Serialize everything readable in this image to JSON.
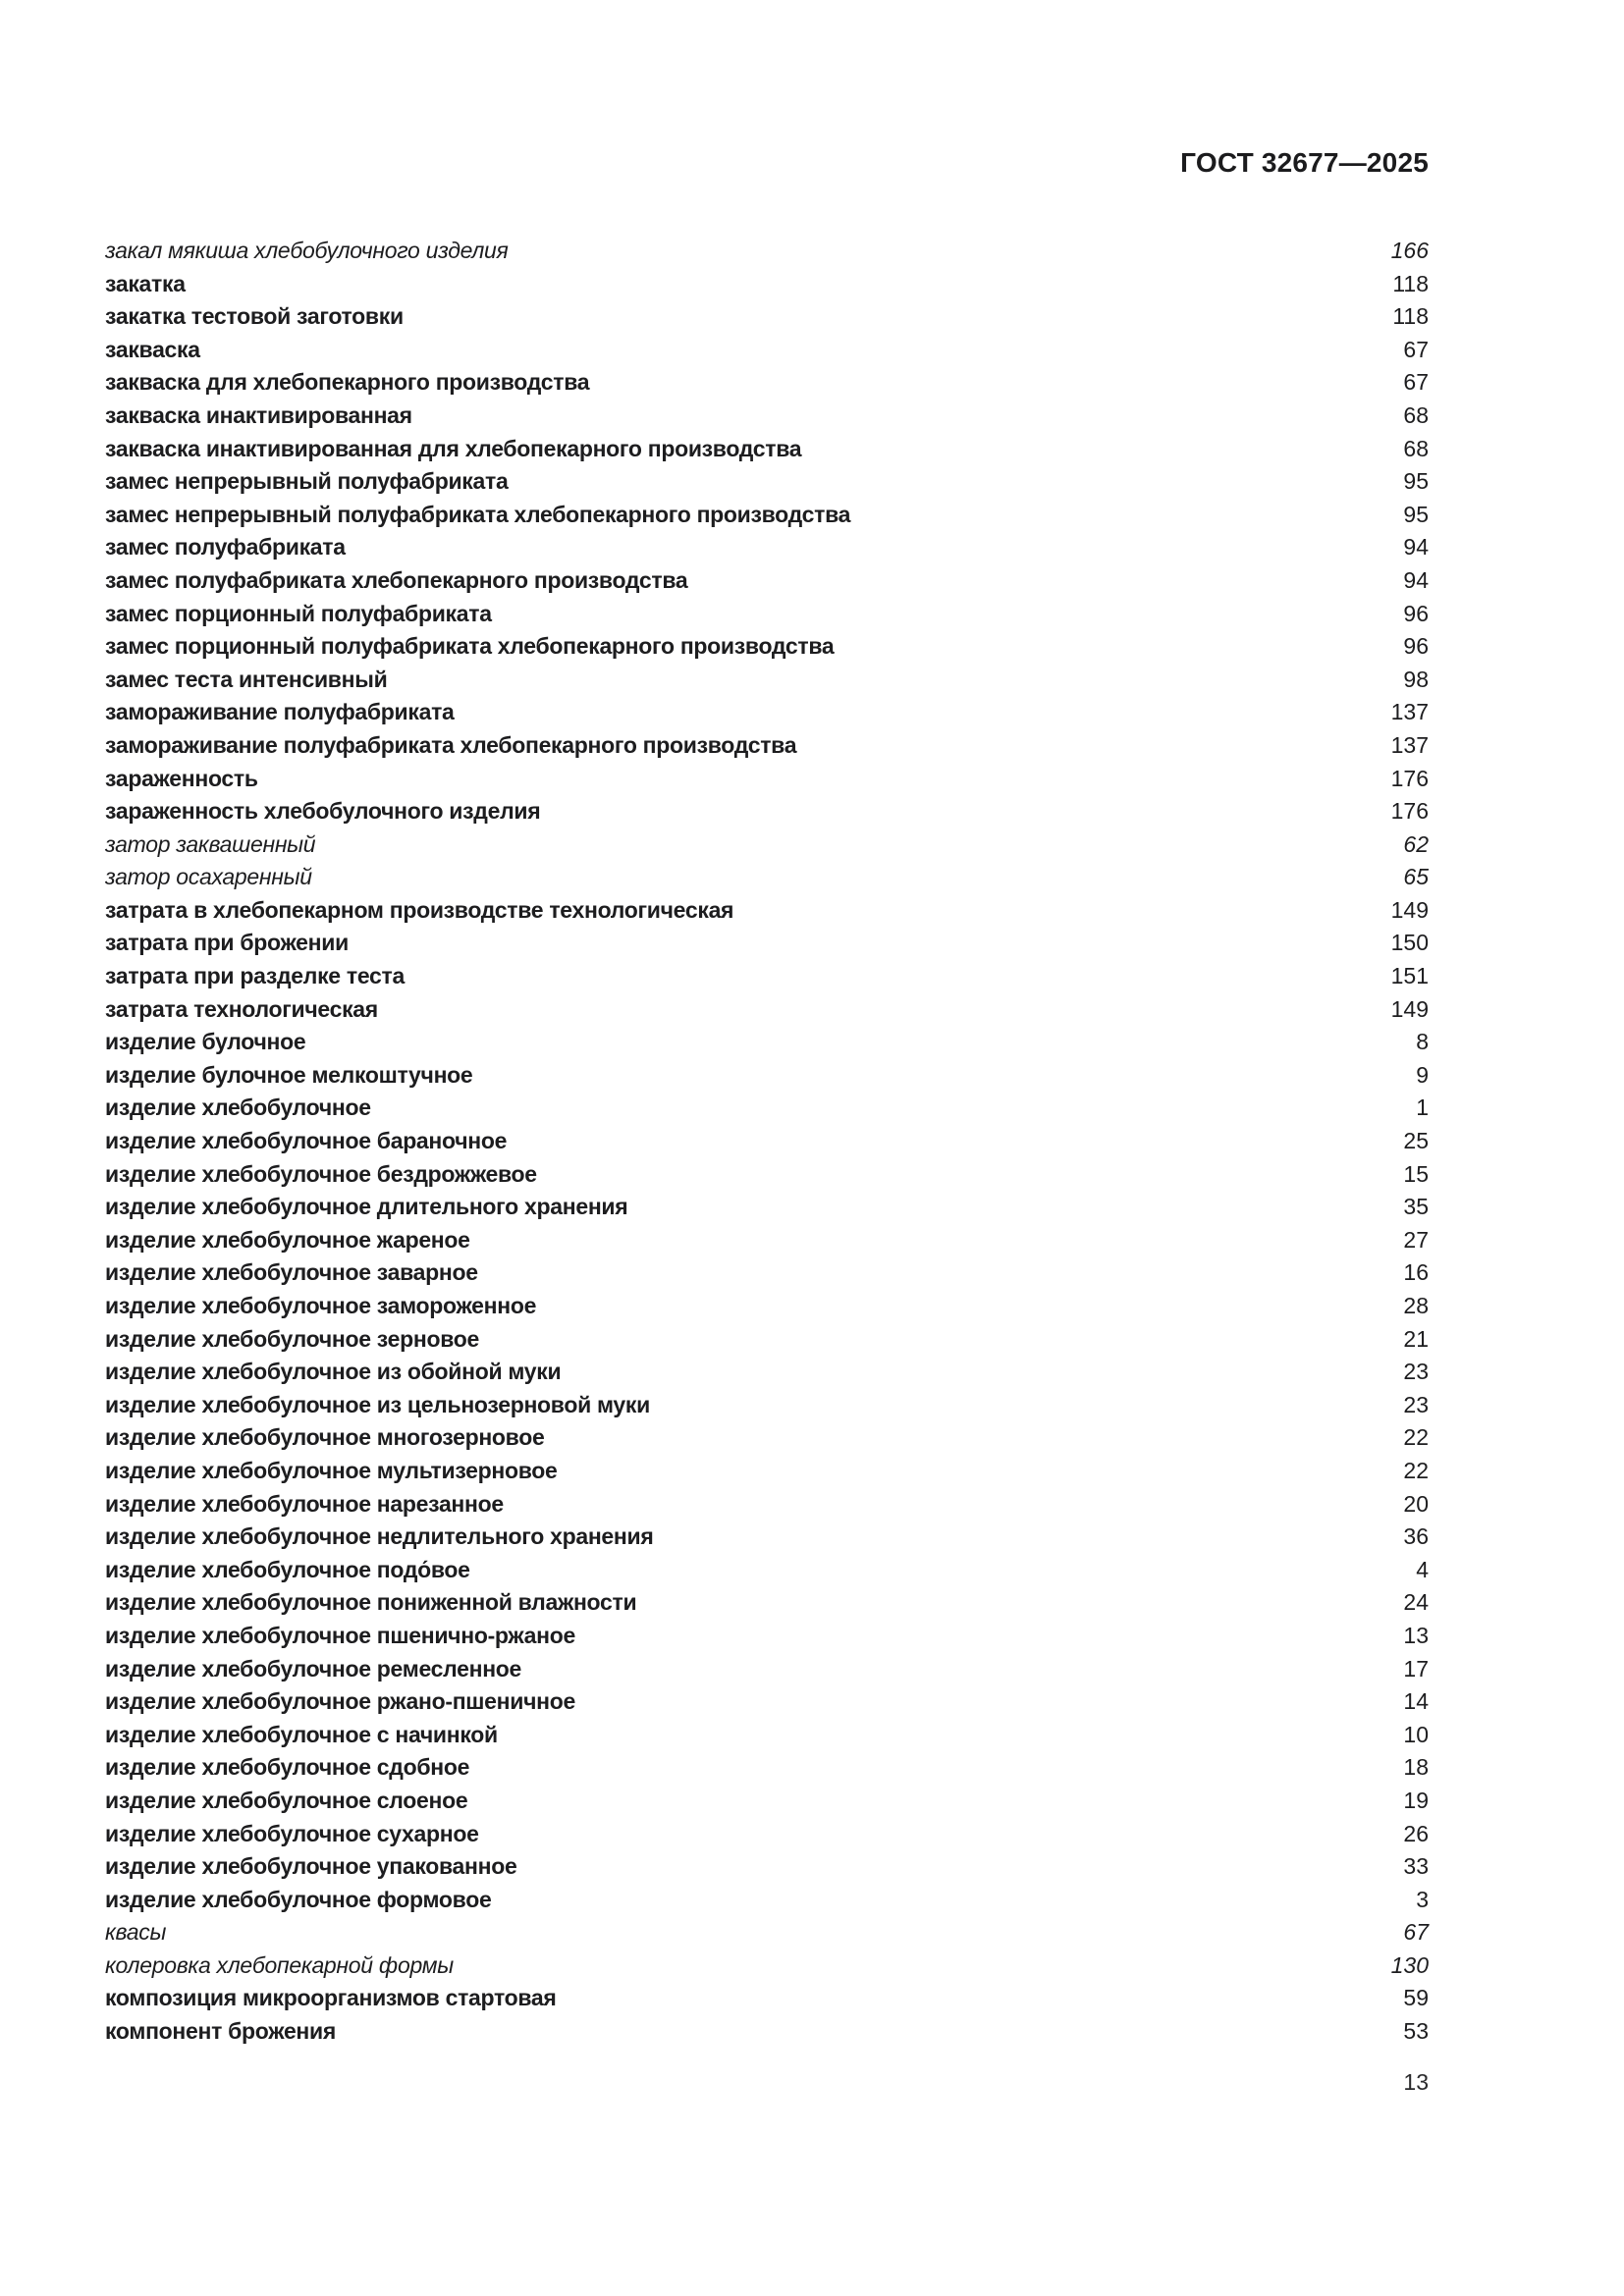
{
  "header": {
    "title": "ГОСТ 32677—2025"
  },
  "index": {
    "items": [
      {
        "term": "закал мякиша хлебобулочного изделия",
        "page": "166",
        "style": "italic"
      },
      {
        "term": "закатка",
        "page": "118",
        "style": "bold"
      },
      {
        "term": "закатка тестовой заготовки",
        "page": "118",
        "style": "bold"
      },
      {
        "term": "закваска",
        "page": "67",
        "style": "bold"
      },
      {
        "term": "закваска для хлебопекарного производства",
        "page": "67",
        "style": "bold"
      },
      {
        "term": "закваска инактивированная",
        "page": "68",
        "style": "bold"
      },
      {
        "term": "закваска инактивированная для хлебопекарного производства",
        "page": "68",
        "style": "bold"
      },
      {
        "term": "замес непрерывный полуфабриката",
        "page": "95",
        "style": "bold"
      },
      {
        "term": "замес непрерывный полуфабриката хлебопекарного производства",
        "page": "95",
        "style": "bold"
      },
      {
        "term": "замес полуфабриката",
        "page": "94",
        "style": "bold"
      },
      {
        "term": "замес полуфабриката хлебопекарного производства",
        "page": "94",
        "style": "bold"
      },
      {
        "term": "замес порционный полуфабриката",
        "page": "96",
        "style": "bold"
      },
      {
        "term": "замес порционный полуфабриката хлебопекарного производства",
        "page": "96",
        "style": "bold"
      },
      {
        "term": "замес теста интенсивный",
        "page": "98",
        "style": "bold"
      },
      {
        "term": "замораживание полуфабриката",
        "page": "137",
        "style": "bold"
      },
      {
        "term": "замораживание полуфабриката хлебопекарного производства",
        "page": "137",
        "style": "bold"
      },
      {
        "term": "зараженность",
        "page": "176",
        "style": "bold"
      },
      {
        "term": "зараженность хлебобулочного изделия",
        "page": "176",
        "style": "bold"
      },
      {
        "term": "затор заквашенный",
        "page": "62",
        "style": "italic"
      },
      {
        "term": "затор осахаренный",
        "page": "65",
        "style": "italic"
      },
      {
        "term": "затрата в хлебопекарном производстве технологическая",
        "page": "149",
        "style": "bold"
      },
      {
        "term": "затрата при брожении",
        "page": "150",
        "style": "bold"
      },
      {
        "term": "затрата при разделке теста",
        "page": "151",
        "style": "bold"
      },
      {
        "term": "затрата технологическая",
        "page": "149",
        "style": "bold"
      },
      {
        "term": "изделие булочное",
        "page": "8",
        "style": "bold"
      },
      {
        "term": "изделие булочное мелкоштучное",
        "page": "9",
        "style": "bold"
      },
      {
        "term": "изделие хлебобулочное",
        "page": "1",
        "style": "bold"
      },
      {
        "term": "изделие хлебобулочное бараночное",
        "page": "25",
        "style": "bold"
      },
      {
        "term": "изделие хлебобулочное бездрожжевое",
        "page": "15",
        "style": "bold"
      },
      {
        "term": "изделие хлебобулочное длительного хранения",
        "page": "35",
        "style": "bold"
      },
      {
        "term": "изделие хлебобулочное жареное",
        "page": "27",
        "style": "bold"
      },
      {
        "term": "изделие хлебобулочное заварное",
        "page": "16",
        "style": "bold"
      },
      {
        "term": "изделие хлебобулочное замороженное",
        "page": "28",
        "style": "bold"
      },
      {
        "term": "изделие хлебобулочное зерновое",
        "page": "21",
        "style": "bold"
      },
      {
        "term": "изделие хлебобулочное из обойной муки",
        "page": "23",
        "style": "bold"
      },
      {
        "term": "изделие хлебобулочное из цельнозерновой муки",
        "page": "23",
        "style": "bold"
      },
      {
        "term": "изделие хлебобулочное многозерновое",
        "page": "22",
        "style": "bold"
      },
      {
        "term": "изделие хлебобулочное мультизерновое",
        "page": "22",
        "style": "bold"
      },
      {
        "term": "изделие хлебобулочное нарезанное",
        "page": "20",
        "style": "bold"
      },
      {
        "term": "изделие хлебобулочное недлительного хранения",
        "page": "36",
        "style": "bold"
      },
      {
        "term": "изделие хлебобулочное подо́вое",
        "page": "4",
        "style": "bold"
      },
      {
        "term": "изделие хлебобулочное пониженной влажности",
        "page": "24",
        "style": "bold"
      },
      {
        "term": "изделие хлебобулочное пшенично-ржаное",
        "page": "13",
        "style": "bold"
      },
      {
        "term": "изделие хлебобулочное ремесленное",
        "page": "17",
        "style": "bold"
      },
      {
        "term": "изделие хлебобулочное ржано-пшеничное",
        "page": "14",
        "style": "bold"
      },
      {
        "term": "изделие хлебобулочное с начинкой",
        "page": "10",
        "style": "bold"
      },
      {
        "term": "изделие хлебобулочное сдобное",
        "page": "18",
        "style": "bold"
      },
      {
        "term": "изделие хлебобулочное слоеное",
        "page": "19",
        "style": "bold"
      },
      {
        "term": "изделие хлебобулочное сухарное",
        "page": "26",
        "style": "bold"
      },
      {
        "term": "изделие хлебобулочное упакованное",
        "page": "33",
        "style": "bold"
      },
      {
        "term": "изделие хлебобулочное формовое",
        "page": "3",
        "style": "bold"
      },
      {
        "term": "квасы",
        "page": "67",
        "style": "italic"
      },
      {
        "term": "колеровка хлебопекарной формы",
        "page": "130",
        "style": "italic"
      },
      {
        "term": "композиция микроорганизмов стартовая",
        "page": "59",
        "style": "bold"
      },
      {
        "term": "компонент брожения",
        "page": "53",
        "style": "bold"
      }
    ]
  },
  "footer": {
    "page_number": "13"
  }
}
